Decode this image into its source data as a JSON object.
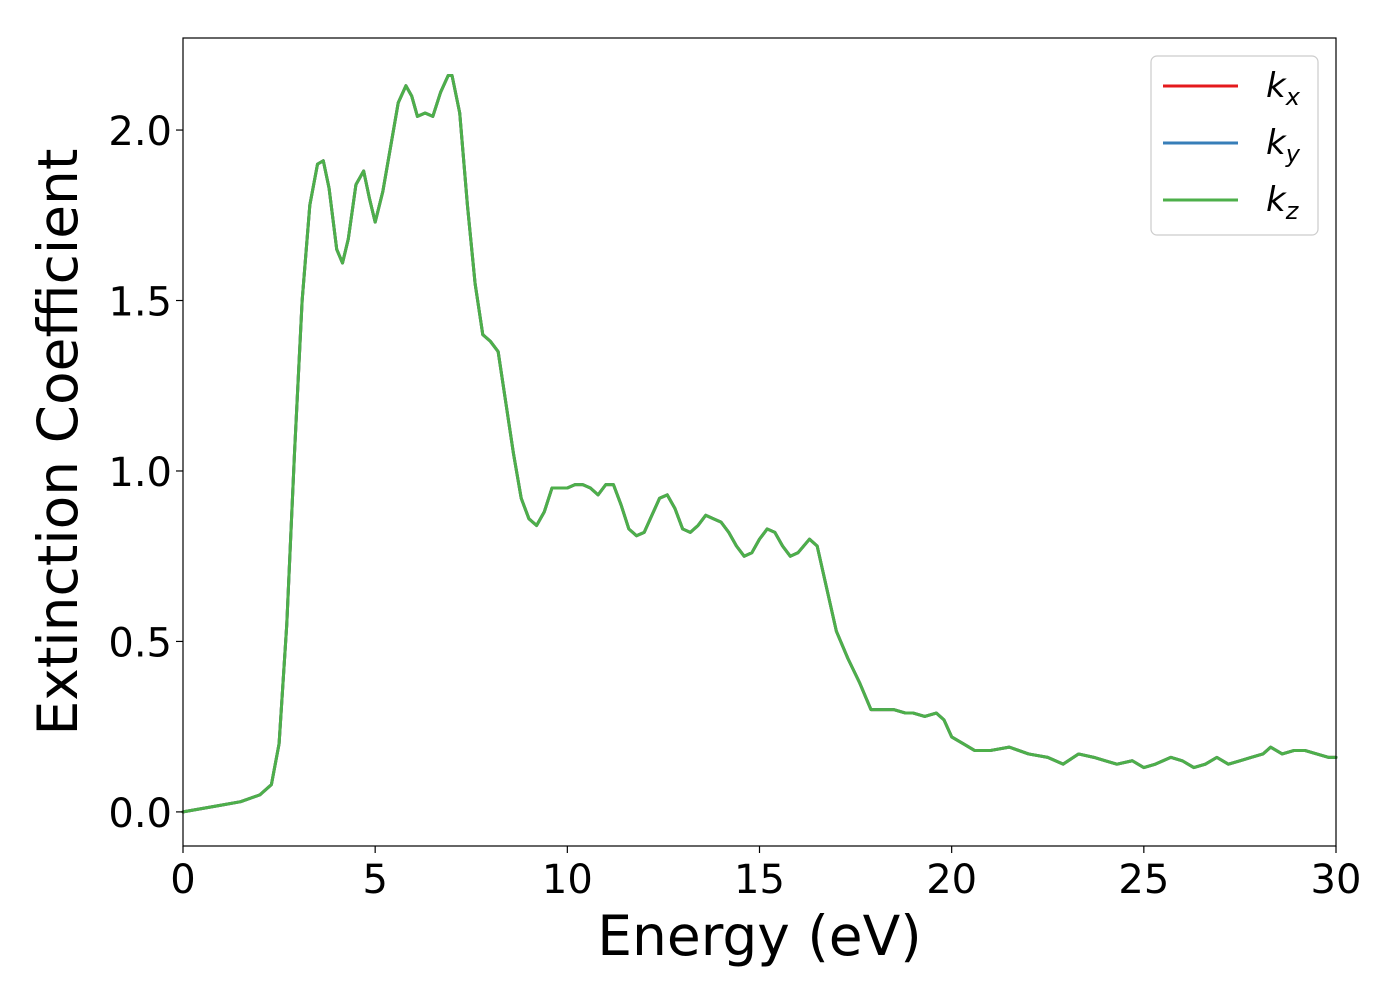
{
  "chart_data": {
    "type": "line",
    "title": "",
    "xlabel": "Energy (eV)",
    "ylabel": "Extinction Coefficient",
    "xlim": [
      0,
      30
    ],
    "ylim": [
      -0.1,
      2.27
    ],
    "xticks": [
      0,
      5,
      10,
      15,
      20,
      25,
      30
    ],
    "xtick_labels": [
      "0",
      "5",
      "10",
      "15",
      "20",
      "25",
      "30"
    ],
    "yticks": [
      0.0,
      0.5,
      1.0,
      1.5,
      2.0
    ],
    "ytick_labels": [
      "0.0",
      "0.5",
      "1.0",
      "1.5",
      "2.0"
    ],
    "grid": false,
    "legend_position": "top-right",
    "series": [
      {
        "name": "k_x",
        "legend_base": "k",
        "legend_sub": "x",
        "color": "#e41a1c",
        "x": [
          0,
          0.5,
          1,
          1.5,
          2,
          2.3,
          2.5,
          2.7,
          2.9,
          3.1,
          3.3,
          3.5,
          3.65,
          3.8,
          4.0,
          4.15,
          4.3,
          4.5,
          4.7,
          4.85,
          5.0,
          5.2,
          5.4,
          5.6,
          5.8,
          5.95,
          6.1,
          6.3,
          6.5,
          6.7,
          6.9,
          7.0,
          7.2,
          7.4,
          7.6,
          7.8,
          8.0,
          8.2,
          8.4,
          8.6,
          8.8,
          9.0,
          9.2,
          9.4,
          9.6,
          9.8,
          10.0,
          10.2,
          10.4,
          10.6,
          10.8,
          11.0,
          11.2,
          11.4,
          11.6,
          11.8,
          12.0,
          12.2,
          12.4,
          12.6,
          12.8,
          13.0,
          13.2,
          13.4,
          13.6,
          13.8,
          14.0,
          14.2,
          14.4,
          14.6,
          14.8,
          15.0,
          15.2,
          15.4,
          15.6,
          15.8,
          16.0,
          16.3,
          16.5,
          16.7,
          17.0,
          17.3,
          17.6,
          17.9,
          18.2,
          18.5,
          18.8,
          19.0,
          19.3,
          19.6,
          19.8,
          20.0,
          20.3,
          20.6,
          21.0,
          21.5,
          22.0,
          22.5,
          22.9,
          23.3,
          23.7,
          24.0,
          24.3,
          24.7,
          25.0,
          25.3,
          25.7,
          26.0,
          26.3,
          26.6,
          26.9,
          27.2,
          27.5,
          27.8,
          28.1,
          28.3,
          28.6,
          28.9,
          29.2,
          29.5,
          29.8,
          30.0
        ],
        "y": [
          0.0,
          0.01,
          0.02,
          0.03,
          0.05,
          0.08,
          0.2,
          0.55,
          1.05,
          1.5,
          1.78,
          1.9,
          1.91,
          1.83,
          1.65,
          1.61,
          1.68,
          1.84,
          1.88,
          1.8,
          1.73,
          1.82,
          1.95,
          2.08,
          2.13,
          2.1,
          2.04,
          2.05,
          2.04,
          2.11,
          2.16,
          2.16,
          2.05,
          1.78,
          1.55,
          1.4,
          1.38,
          1.35,
          1.2,
          1.05,
          0.92,
          0.86,
          0.84,
          0.88,
          0.95,
          0.95,
          0.95,
          0.96,
          0.96,
          0.95,
          0.93,
          0.96,
          0.96,
          0.9,
          0.83,
          0.81,
          0.82,
          0.87,
          0.92,
          0.93,
          0.89,
          0.83,
          0.82,
          0.84,
          0.87,
          0.86,
          0.85,
          0.82,
          0.78,
          0.75,
          0.76,
          0.8,
          0.83,
          0.82,
          0.78,
          0.75,
          0.76,
          0.8,
          0.78,
          0.68,
          0.53,
          0.45,
          0.38,
          0.3,
          0.3,
          0.3,
          0.29,
          0.29,
          0.28,
          0.29,
          0.27,
          0.22,
          0.2,
          0.18,
          0.18,
          0.19,
          0.17,
          0.16,
          0.14,
          0.17,
          0.16,
          0.15,
          0.14,
          0.15,
          0.13,
          0.14,
          0.16,
          0.15,
          0.13,
          0.14,
          0.16,
          0.14,
          0.15,
          0.16,
          0.17,
          0.19,
          0.17,
          0.18,
          0.18,
          0.17,
          0.16,
          0.16
        ]
      },
      {
        "name": "k_y",
        "legend_base": "k",
        "legend_sub": "y",
        "color": "#377eb8",
        "x": [
          0,
          0.5,
          1,
          1.5,
          2,
          2.3,
          2.5,
          2.7,
          2.9,
          3.1,
          3.3,
          3.5,
          3.65,
          3.8,
          4.0,
          4.15,
          4.3,
          4.5,
          4.7,
          4.85,
          5.0,
          5.2,
          5.4,
          5.6,
          5.8,
          5.95,
          6.1,
          6.3,
          6.5,
          6.7,
          6.9,
          7.0,
          7.2,
          7.4,
          7.6,
          7.8,
          8.0,
          8.2,
          8.4,
          8.6,
          8.8,
          9.0,
          9.2,
          9.4,
          9.6,
          9.8,
          10.0,
          10.2,
          10.4,
          10.6,
          10.8,
          11.0,
          11.2,
          11.4,
          11.6,
          11.8,
          12.0,
          12.2,
          12.4,
          12.6,
          12.8,
          13.0,
          13.2,
          13.4,
          13.6,
          13.8,
          14.0,
          14.2,
          14.4,
          14.6,
          14.8,
          15.0,
          15.2,
          15.4,
          15.6,
          15.8,
          16.0,
          16.3,
          16.5,
          16.7,
          17.0,
          17.3,
          17.6,
          17.9,
          18.2,
          18.5,
          18.8,
          19.0,
          19.3,
          19.6,
          19.8,
          20.0,
          20.3,
          20.6,
          21.0,
          21.5,
          22.0,
          22.5,
          22.9,
          23.3,
          23.7,
          24.0,
          24.3,
          24.7,
          25.0,
          25.3,
          25.7,
          26.0,
          26.3,
          26.6,
          26.9,
          27.2,
          27.5,
          27.8,
          28.1,
          28.3,
          28.6,
          28.9,
          29.2,
          29.5,
          29.8,
          30.0
        ],
        "y": [
          0.0,
          0.01,
          0.02,
          0.03,
          0.05,
          0.08,
          0.2,
          0.55,
          1.05,
          1.5,
          1.78,
          1.9,
          1.91,
          1.83,
          1.65,
          1.61,
          1.68,
          1.84,
          1.88,
          1.8,
          1.73,
          1.82,
          1.95,
          2.08,
          2.13,
          2.1,
          2.04,
          2.05,
          2.04,
          2.11,
          2.16,
          2.16,
          2.05,
          1.78,
          1.55,
          1.4,
          1.38,
          1.35,
          1.2,
          1.05,
          0.92,
          0.86,
          0.84,
          0.88,
          0.95,
          0.95,
          0.95,
          0.96,
          0.96,
          0.95,
          0.93,
          0.96,
          0.96,
          0.9,
          0.83,
          0.81,
          0.82,
          0.87,
          0.92,
          0.93,
          0.89,
          0.83,
          0.82,
          0.84,
          0.87,
          0.86,
          0.85,
          0.82,
          0.78,
          0.75,
          0.76,
          0.8,
          0.83,
          0.82,
          0.78,
          0.75,
          0.76,
          0.8,
          0.78,
          0.68,
          0.53,
          0.45,
          0.38,
          0.3,
          0.3,
          0.3,
          0.29,
          0.29,
          0.28,
          0.29,
          0.27,
          0.22,
          0.2,
          0.18,
          0.18,
          0.19,
          0.17,
          0.16,
          0.14,
          0.17,
          0.16,
          0.15,
          0.14,
          0.15,
          0.13,
          0.14,
          0.16,
          0.15,
          0.13,
          0.14,
          0.16,
          0.14,
          0.15,
          0.16,
          0.17,
          0.19,
          0.17,
          0.18,
          0.18,
          0.17,
          0.16,
          0.16
        ]
      },
      {
        "name": "k_z",
        "legend_base": "k",
        "legend_sub": "z",
        "color": "#4daf4a",
        "x": [
          0,
          0.5,
          1,
          1.5,
          2,
          2.3,
          2.5,
          2.7,
          2.9,
          3.1,
          3.3,
          3.5,
          3.65,
          3.8,
          4.0,
          4.15,
          4.3,
          4.5,
          4.7,
          4.85,
          5.0,
          5.2,
          5.4,
          5.6,
          5.8,
          5.95,
          6.1,
          6.3,
          6.5,
          6.7,
          6.9,
          7.0,
          7.2,
          7.4,
          7.6,
          7.8,
          8.0,
          8.2,
          8.4,
          8.6,
          8.8,
          9.0,
          9.2,
          9.4,
          9.6,
          9.8,
          10.0,
          10.2,
          10.4,
          10.6,
          10.8,
          11.0,
          11.2,
          11.4,
          11.6,
          11.8,
          12.0,
          12.2,
          12.4,
          12.6,
          12.8,
          13.0,
          13.2,
          13.4,
          13.6,
          13.8,
          14.0,
          14.2,
          14.4,
          14.6,
          14.8,
          15.0,
          15.2,
          15.4,
          15.6,
          15.8,
          16.0,
          16.3,
          16.5,
          16.7,
          17.0,
          17.3,
          17.6,
          17.9,
          18.2,
          18.5,
          18.8,
          19.0,
          19.3,
          19.6,
          19.8,
          20.0,
          20.3,
          20.6,
          21.0,
          21.5,
          22.0,
          22.5,
          22.9,
          23.3,
          23.7,
          24.0,
          24.3,
          24.7,
          25.0,
          25.3,
          25.7,
          26.0,
          26.3,
          26.6,
          26.9,
          27.2,
          27.5,
          27.8,
          28.1,
          28.3,
          28.6,
          28.9,
          29.2,
          29.5,
          29.8,
          30.0
        ],
        "y": [
          0.0,
          0.01,
          0.02,
          0.03,
          0.05,
          0.08,
          0.2,
          0.55,
          1.05,
          1.5,
          1.78,
          1.9,
          1.91,
          1.83,
          1.65,
          1.61,
          1.68,
          1.84,
          1.88,
          1.8,
          1.73,
          1.82,
          1.95,
          2.08,
          2.13,
          2.1,
          2.04,
          2.05,
          2.04,
          2.11,
          2.16,
          2.16,
          2.05,
          1.78,
          1.55,
          1.4,
          1.38,
          1.35,
          1.2,
          1.05,
          0.92,
          0.86,
          0.84,
          0.88,
          0.95,
          0.95,
          0.95,
          0.96,
          0.96,
          0.95,
          0.93,
          0.96,
          0.96,
          0.9,
          0.83,
          0.81,
          0.82,
          0.87,
          0.92,
          0.93,
          0.89,
          0.83,
          0.82,
          0.84,
          0.87,
          0.86,
          0.85,
          0.82,
          0.78,
          0.75,
          0.76,
          0.8,
          0.83,
          0.82,
          0.78,
          0.75,
          0.76,
          0.8,
          0.78,
          0.68,
          0.53,
          0.45,
          0.38,
          0.3,
          0.3,
          0.3,
          0.29,
          0.29,
          0.28,
          0.29,
          0.27,
          0.22,
          0.2,
          0.18,
          0.18,
          0.19,
          0.17,
          0.16,
          0.14,
          0.17,
          0.16,
          0.15,
          0.14,
          0.15,
          0.13,
          0.14,
          0.16,
          0.15,
          0.13,
          0.14,
          0.16,
          0.14,
          0.15,
          0.16,
          0.17,
          0.19,
          0.17,
          0.18,
          0.18,
          0.17,
          0.16,
          0.16
        ]
      }
    ]
  }
}
